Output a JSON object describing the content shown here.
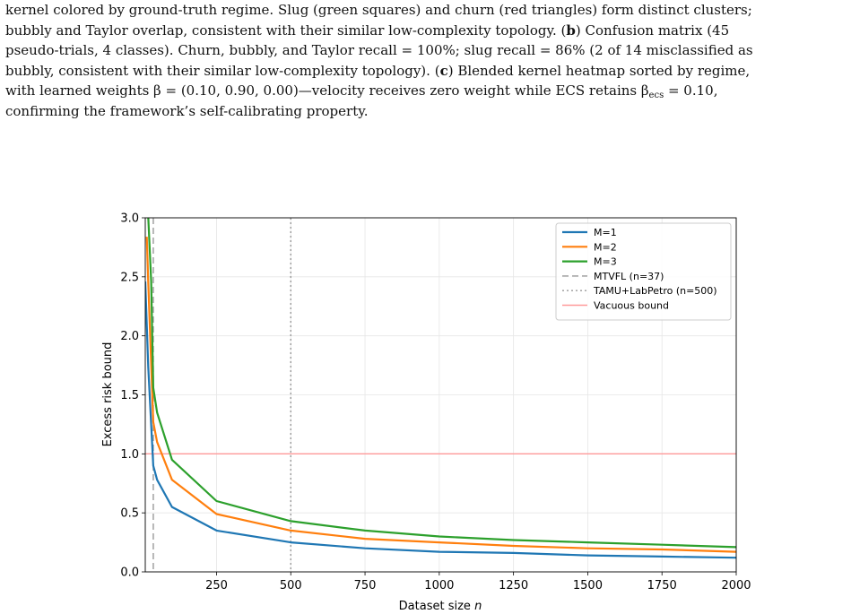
{
  "caption": {
    "line1": "kernel colored by ground-truth regime. Slug (green squares) and churn (red triangles) form distinct clusters;",
    "line2": "bubbly and Taylor overlap, consistent with their similar low-complexity topology. (",
    "ref_b": "b",
    "line2b": ") Confusion matrix (45",
    "line3": "pseudo-trials, 4 classes). Churn, bubbly, and Taylor recall = 100%; slug recall = 86% (2 of 14 misclassified as",
    "line4": "bubbly, consistent with their similar low-complexity topology). (",
    "ref_c": "c",
    "line4b": ") Blended kernel heatmap sorted by regime,",
    "line5a": "with learned weights β = (0.10, 0.90, 0.00)—velocity receives zero weight while ECS retains β",
    "line5sub": "ecs",
    "line5b": " = 0.10,",
    "line6": "confirming the framework’s self-calibrating property."
  },
  "chart_data": {
    "type": "line",
    "xlabel": "Dataset size ",
    "xlabel_var": "n",
    "ylabel": "Excess risk bound",
    "xlim": [
      10,
      2000
    ],
    "ylim": [
      0.0,
      3.0
    ],
    "xticks": [
      250,
      500,
      750,
      1000,
      1250,
      1500,
      1750,
      2000
    ],
    "xtick_labels": [
      "250",
      "500",
      "750",
      "1000",
      "1250",
      "1500",
      "1750",
      "2000"
    ],
    "yticks": [
      0.0,
      0.5,
      1.0,
      1.5,
      2.0,
      2.5,
      3.0
    ],
    "ytick_labels": [
      "0.0",
      "0.5",
      "1.0",
      "1.5",
      "2.0",
      "2.5",
      "3.0"
    ],
    "grid": true,
    "legend_placement": "top-right",
    "series": [
      {
        "name": "M=1",
        "color": "#1f77b4",
        "x": [
          10,
          20,
          37,
          50,
          100,
          250,
          500,
          750,
          1000,
          1250,
          1500,
          1750,
          2000
        ],
        "values": [
          2.46,
          1.74,
          0.9,
          0.78,
          0.55,
          0.35,
          0.25,
          0.2,
          0.17,
          0.16,
          0.14,
          0.13,
          0.12
        ]
      },
      {
        "name": "M=2",
        "color": "#ff7f0e",
        "x": [
          15,
          20,
          37,
          50,
          100,
          250,
          500,
          750,
          1000,
          1250,
          1500,
          1750,
          2000
        ],
        "values": [
          2.84,
          2.46,
          1.27,
          1.1,
          0.78,
          0.49,
          0.35,
          0.28,
          0.25,
          0.22,
          0.2,
          0.19,
          0.17
        ]
      },
      {
        "name": "M=3",
        "color": "#2ca02c",
        "x": [
          20,
          30,
          37,
          50,
          100,
          250,
          500,
          750,
          1000,
          1250,
          1500,
          1750,
          2000
        ],
        "values": [
          3.01,
          2.46,
          1.56,
          1.35,
          0.95,
          0.6,
          0.43,
          0.35,
          0.3,
          0.27,
          0.25,
          0.23,
          0.21
        ]
      }
    ],
    "reference_lines": [
      {
        "name": "MTVFL (n=37)",
        "orientation": "vertical",
        "value": 37,
        "color": "#999999",
        "style": "dashed"
      },
      {
        "name": "TAMU+LabPetro (n=500)",
        "orientation": "vertical",
        "value": 500,
        "color": "#999999",
        "style": "dotted"
      },
      {
        "name": "Vacuous bound",
        "orientation": "horizontal",
        "value": 1.0,
        "color": "#ff9999",
        "style": "solid"
      }
    ]
  }
}
